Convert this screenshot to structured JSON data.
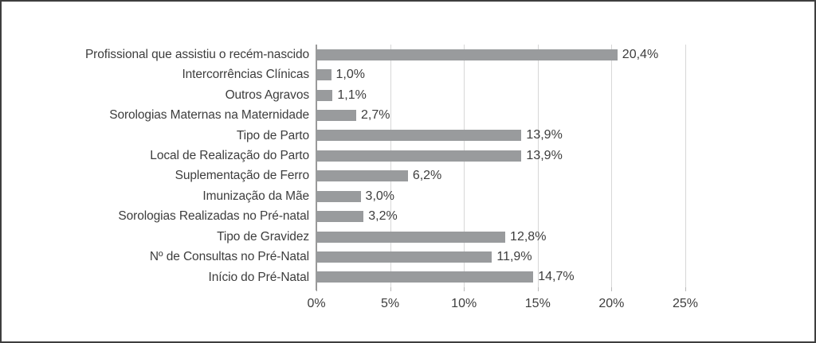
{
  "frame": {
    "background": "#ffffff",
    "border_color": "#3e3e3e"
  },
  "chart_data": {
    "type": "bar",
    "orientation": "horizontal",
    "title": "",
    "xlabel": "",
    "ylabel": "",
    "categories": [
      "Profissional que assistiu o recém-nascido",
      "Intercorrências Clínicas",
      "Outros Agravos",
      "Sorologias Maternas na Maternidade",
      "Tipo de Parto",
      "Local de Realização do Parto",
      "Suplementação de Ferro",
      "Imunização da Mãe",
      "Sorologias Realizadas no Pré-natal",
      "Tipo de Gravidez",
      "Nº de Consultas no Pré-Natal",
      "Início do Pré-Natal"
    ],
    "values": [
      20.4,
      1.0,
      1.1,
      2.7,
      13.9,
      13.9,
      6.2,
      3.0,
      3.2,
      12.8,
      11.9,
      14.7
    ],
    "value_labels": [
      "20,4%",
      "1,0%",
      "1,1%",
      "2,7%",
      "13,9%",
      "13,9%",
      "6,2%",
      "3,0%",
      "3,2%",
      "12,8%",
      "11,9%",
      "14,7%"
    ],
    "xlim": [
      0,
      25
    ],
    "x_tick_values": [
      0,
      5,
      10,
      15,
      20,
      25
    ],
    "x_tick_labels": [
      "0%",
      "5%",
      "10%",
      "15%",
      "20%",
      "25%"
    ],
    "grid": "vertical-gridlines-on",
    "legend": "none",
    "bar_color": "#999b9d",
    "gridline_color": "#d7d7d7",
    "axis_line_color": "#9a9a9a",
    "tick_color": "#b8b8b8",
    "text_color": "#3d3d3d"
  }
}
